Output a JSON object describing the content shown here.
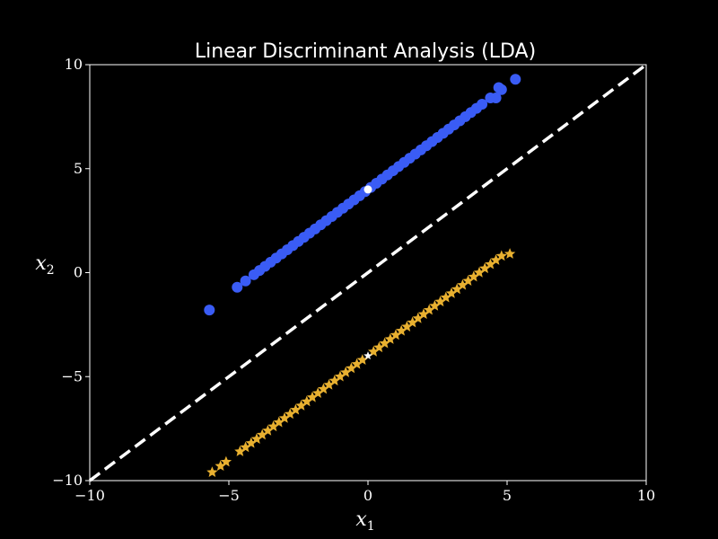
{
  "chart_data": {
    "type": "scatter",
    "title": "Linear Discriminant Analysis (LDA)",
    "xlabel": "x",
    "xlabel_sub": "1",
    "ylabel": "x",
    "ylabel_sub": "2",
    "xlim": [
      -10,
      10
    ],
    "ylim": [
      -10,
      10
    ],
    "xticks": [
      -10,
      -5,
      0,
      5,
      10
    ],
    "yticks": [
      -10,
      -5,
      0,
      5,
      10
    ],
    "xtick_labels": [
      "−10",
      "−5",
      "0",
      "5",
      "10"
    ],
    "ytick_labels": [
      "−10",
      "−5",
      "0",
      "5",
      "10"
    ],
    "grid": false,
    "background": "#000000",
    "foreground": "#ffffff",
    "series": [
      {
        "marker": "circle",
        "color": "#3a5cf5",
        "points": [
          [
            -5.7,
            -1.8
          ],
          [
            -4.7,
            -0.7
          ],
          [
            -4.4,
            -0.4
          ],
          [
            -4.1,
            -0.1
          ],
          [
            -3.9,
            0.1
          ],
          [
            -3.7,
            0.3
          ],
          [
            -3.5,
            0.5
          ],
          [
            -3.3,
            0.7
          ],
          [
            -3.1,
            0.9
          ],
          [
            -2.9,
            1.1
          ],
          [
            -2.7,
            1.3
          ],
          [
            -2.5,
            1.5
          ],
          [
            -2.3,
            1.7
          ],
          [
            -2.1,
            1.9
          ],
          [
            -1.9,
            2.1
          ],
          [
            -1.7,
            2.3
          ],
          [
            -1.5,
            2.5
          ],
          [
            -1.3,
            2.7
          ],
          [
            -1.1,
            2.9
          ],
          [
            -0.9,
            3.1
          ],
          [
            -0.7,
            3.3
          ],
          [
            -0.5,
            3.5
          ],
          [
            -0.3,
            3.7
          ],
          [
            -0.1,
            3.9
          ],
          [
            0.1,
            4.1
          ],
          [
            0.3,
            4.3
          ],
          [
            0.5,
            4.5
          ],
          [
            0.7,
            4.7
          ],
          [
            0.9,
            4.9
          ],
          [
            1.1,
            5.1
          ],
          [
            1.3,
            5.3
          ],
          [
            1.5,
            5.5
          ],
          [
            1.7,
            5.7
          ],
          [
            1.9,
            5.9
          ],
          [
            2.1,
            6.1
          ],
          [
            2.3,
            6.3
          ],
          [
            2.5,
            6.5
          ],
          [
            2.7,
            6.7
          ],
          [
            2.9,
            6.9
          ],
          [
            3.1,
            7.1
          ],
          [
            3.3,
            7.3
          ],
          [
            3.5,
            7.5
          ],
          [
            3.7,
            7.7
          ],
          [
            3.9,
            7.9
          ],
          [
            4.1,
            8.1
          ],
          [
            4.4,
            8.4
          ],
          [
            4.6,
            8.4
          ],
          [
            4.8,
            8.8
          ],
          [
            4.7,
            8.9
          ],
          [
            5.3,
            9.3
          ]
        ]
      },
      {
        "marker": "star",
        "color": "#e8b030",
        "points": [
          [
            -5.6,
            -9.6
          ],
          [
            -5.3,
            -9.3
          ],
          [
            -5.1,
            -9.1
          ],
          [
            -4.6,
            -8.6
          ],
          [
            -4.4,
            -8.4
          ],
          [
            -4.2,
            -8.2
          ],
          [
            -4.0,
            -8.0
          ],
          [
            -3.8,
            -7.8
          ],
          [
            -3.6,
            -7.6
          ],
          [
            -3.4,
            -7.4
          ],
          [
            -3.2,
            -7.2
          ],
          [
            -3.0,
            -7.0
          ],
          [
            -2.8,
            -6.8
          ],
          [
            -2.6,
            -6.6
          ],
          [
            -2.4,
            -6.4
          ],
          [
            -2.2,
            -6.2
          ],
          [
            -2.0,
            -6.0
          ],
          [
            -1.8,
            -5.8
          ],
          [
            -1.6,
            -5.6
          ],
          [
            -1.4,
            -5.4
          ],
          [
            -1.2,
            -5.2
          ],
          [
            -1.0,
            -5.0
          ],
          [
            -0.8,
            -4.8
          ],
          [
            -0.6,
            -4.6
          ],
          [
            -0.4,
            -4.4
          ],
          [
            -0.2,
            -4.2
          ],
          [
            0.2,
            -3.8
          ],
          [
            0.4,
            -3.6
          ],
          [
            0.6,
            -3.4
          ],
          [
            0.8,
            -3.2
          ],
          [
            1.0,
            -3.0
          ],
          [
            1.2,
            -2.8
          ],
          [
            1.4,
            -2.6
          ],
          [
            1.6,
            -2.4
          ],
          [
            1.8,
            -2.2
          ],
          [
            2.0,
            -2.0
          ],
          [
            2.2,
            -1.8
          ],
          [
            2.4,
            -1.6
          ],
          [
            2.6,
            -1.4
          ],
          [
            2.8,
            -1.2
          ],
          [
            3.0,
            -1.0
          ],
          [
            3.2,
            -0.8
          ],
          [
            3.4,
            -0.6
          ],
          [
            3.6,
            -0.4
          ],
          [
            3.8,
            -0.2
          ],
          [
            4.0,
            0.0
          ],
          [
            4.2,
            0.2
          ],
          [
            4.4,
            0.4
          ],
          [
            4.6,
            0.6
          ],
          [
            4.8,
            0.8
          ],
          [
            5.1,
            0.9
          ]
        ]
      },
      {
        "marker": "circle",
        "color": "#ffffff",
        "points": [
          [
            0.0,
            4.0
          ]
        ]
      },
      {
        "marker": "star",
        "color": "#ffffff",
        "points": [
          [
            0.0,
            -4.0
          ]
        ]
      }
    ],
    "lines": [
      {
        "style": "dashed",
        "color": "#ffffff",
        "x": [
          -10,
          10
        ],
        "y": [
          -10,
          10
        ]
      }
    ]
  }
}
